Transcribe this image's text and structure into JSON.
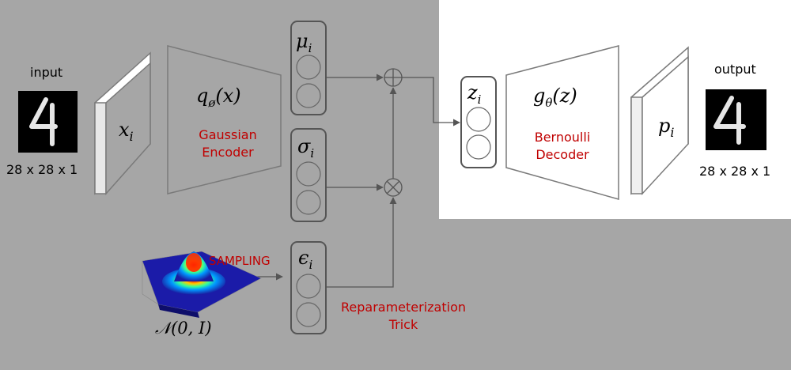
{
  "input": {
    "label": "input",
    "dims": "28 x 28 x 1",
    "digit": "4"
  },
  "output": {
    "label": "output",
    "dims": "28 x 28 x 1",
    "digit": "4"
  },
  "encoder": {
    "func": "q",
    "func_sub": "ø",
    "func_arg": "(x)",
    "line1": "Gaussian",
    "line2": "Encoder"
  },
  "decoder": {
    "func": "g",
    "func_sub": "θ",
    "func_arg": "(z)",
    "line1": "Bernoulli",
    "line2": "Decoder"
  },
  "x_label": {
    "base": "x",
    "sub": "i"
  },
  "p_label": {
    "base": "p",
    "sub": "i"
  },
  "mu_label": {
    "base": "μ",
    "sub": "i"
  },
  "sigma_label": {
    "base": "σ",
    "sub": "i"
  },
  "eps_label": {
    "base": "ϵ",
    "sub": "i"
  },
  "z_label": {
    "base": "z",
    "sub": "i"
  },
  "sampling": "SAMPLING",
  "normal": "𝒩(0, I)",
  "reparam": {
    "line1": "Reparameterization",
    "line2": "Trick"
  },
  "colors": {
    "accent_red": "#c00000",
    "background": "#a6a6a6",
    "panel": "#ffffff"
  }
}
